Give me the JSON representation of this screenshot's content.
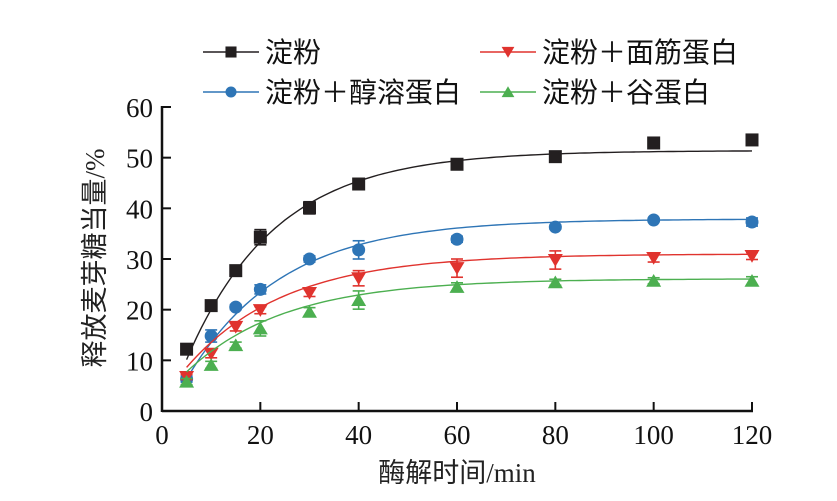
{
  "chart_data": {
    "type": "line",
    "title": "",
    "xlabel": "酶解时间/min",
    "ylabel": "释放麦芽糖当量/%",
    "xlim": [
      0,
      120
    ],
    "ylim": [
      0,
      60
    ],
    "xticks": [
      0,
      20,
      40,
      60,
      80,
      100,
      120
    ],
    "yticks": [
      0,
      10,
      20,
      30,
      40,
      50,
      60
    ],
    "grid": false,
    "legend_position": "top",
    "x": [
      5,
      10,
      15,
      20,
      30,
      40,
      60,
      80,
      100,
      120
    ],
    "series": [
      {
        "name": "淀粉",
        "color": "#231f20",
        "marker": "square",
        "values": [
          12.2,
          20.8,
          27.7,
          34.3,
          40.1,
          44.8,
          48.7,
          50.2,
          52.9,
          53.5
        ],
        "errors": [
          0.6,
          1.0,
          0.7,
          1.5,
          1.2,
          1.0,
          1.0,
          0.6,
          0.7,
          0.6
        ],
        "fit": {
          "A": 51.4,
          "k": 0.055,
          "x0": 1.0
        }
      },
      {
        "name": "淀粉＋醇溶蛋白",
        "color": "#2e75b6",
        "marker": "circle",
        "values": [
          6.3,
          14.8,
          20.5,
          24.0,
          30.0,
          31.8,
          33.9,
          36.3,
          37.7,
          37.3
        ],
        "errors": [
          0.6,
          1.2,
          0.5,
          0.9,
          0.6,
          1.8,
          0.6,
          0.4,
          0.3,
          0.8
        ],
        "fit": {
          "A": 37.9,
          "k": 0.052,
          "x0": 1.5
        }
      },
      {
        "name": "淀粉＋面筋蛋白",
        "color": "#e0332e",
        "marker": "triangle-down",
        "values": [
          6.7,
          11.3,
          16.6,
          19.9,
          23.3,
          26.2,
          28.2,
          29.8,
          30.2,
          30.6
        ],
        "errors": [
          0.5,
          0.8,
          0.8,
          0.7,
          0.7,
          1.5,
          1.8,
          1.8,
          0.8,
          0.7
        ],
        "fit": {
          "A": 31.0,
          "k": 0.05,
          "x0": -1.5
        }
      },
      {
        "name": "淀粉＋谷蛋白",
        "color": "#4caf50",
        "marker": "triangle-up",
        "values": [
          5.8,
          9.1,
          13.0,
          16.3,
          19.6,
          21.9,
          24.5,
          25.4,
          25.7,
          25.7
        ],
        "errors": [
          0.6,
          0.7,
          0.6,
          1.5,
          0.8,
          1.8,
          0.8,
          0.6,
          0.6,
          0.8
        ],
        "fit": {
          "A": 26.1,
          "k": 0.05,
          "x0": -2.0
        }
      }
    ]
  }
}
